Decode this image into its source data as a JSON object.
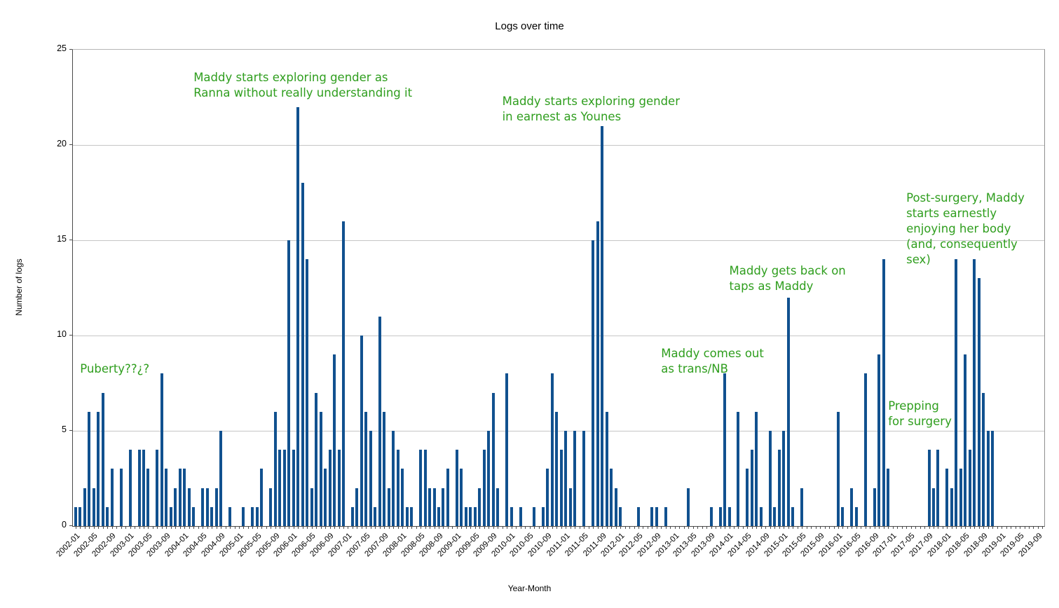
{
  "chart_data": {
    "type": "bar",
    "title": "Logs over time",
    "xlabel": "Year-Month",
    "ylabel": "Number of logs",
    "ylim": [
      0,
      25
    ],
    "yticks": [
      0,
      5,
      10,
      15,
      20,
      25
    ],
    "grid": "horizontal",
    "legend": "none",
    "x_start_month": "2002-01",
    "x_end_month": "2019-12",
    "x_tick_every_months": 1,
    "x_label_every_months": 4,
    "x_tick_labels": [
      "2002-01",
      "2002-05",
      "2002-09",
      "2003-01",
      "2003-05",
      "2003-09",
      "2004-01",
      "2004-05",
      "2004-09",
      "2005-01",
      "2005-05",
      "2005-09",
      "2006-01",
      "2006-05",
      "2006-09",
      "2007-01",
      "2007-05",
      "2007-09",
      "2008-01",
      "2008-05",
      "2008-09",
      "2009-01",
      "2009-05",
      "2009-09",
      "2010-01",
      "2010-05",
      "2010-09",
      "2011-01",
      "2011-05",
      "2011-09",
      "2012-01",
      "2012-05",
      "2012-09",
      "2013-01",
      "2013-05",
      "2013-09",
      "2014-01",
      "2014-05",
      "2014-09",
      "2015-01",
      "2015-05",
      "2015-09",
      "2016-01",
      "2016-05",
      "2016-09",
      "2017-01",
      "2017-05",
      "2017-09",
      "2018-01",
      "2018-05",
      "2018-09",
      "2019-01",
      "2019-05",
      "2019-09"
    ],
    "values_by_year": {
      "2002": [
        1,
        1,
        2,
        6,
        2,
        6,
        7,
        1,
        3,
        0,
        3,
        0
      ],
      "2003": [
        4,
        0,
        4,
        4,
        3,
        0,
        4,
        8,
        3,
        1,
        2,
        3
      ],
      "2004": [
        3,
        2,
        1,
        0,
        2,
        2,
        1,
        2,
        5,
        0,
        1,
        0
      ],
      "2005": [
        0,
        1,
        0,
        1,
        1,
        3,
        0,
        2,
        6,
        4,
        4,
        15
      ],
      "2006": [
        4,
        22,
        18,
        14,
        2,
        7,
        6,
        3,
        4,
        9,
        4,
        16
      ],
      "2007": [
        0,
        1,
        2,
        10,
        6,
        5,
        1,
        11,
        6,
        2,
        5,
        4
      ],
      "2008": [
        3,
        1,
        1,
        0,
        4,
        4,
        2,
        2,
        1,
        2,
        3,
        0
      ],
      "2009": [
        4,
        3,
        1,
        1,
        1,
        2,
        4,
        5,
        7,
        2,
        0,
        8
      ],
      "2010": [
        1,
        0,
        1,
        0,
        0,
        1,
        0,
        1,
        3,
        8,
        6,
        4
      ],
      "2011": [
        5,
        2,
        5,
        0,
        5,
        0,
        15,
        16,
        21,
        6,
        3,
        2
      ],
      "2012": [
        1,
        0,
        0,
        0,
        1,
        0,
        0,
        1,
        1,
        0,
        1,
        0
      ],
      "2013": [
        0,
        0,
        0,
        2,
        0,
        0,
        0,
        0,
        1,
        0,
        1,
        8
      ],
      "2014": [
        1,
        0,
        6,
        0,
        3,
        4,
        6,
        1,
        0,
        5,
        1,
        4
      ],
      "2015": [
        5,
        12,
        1,
        0,
        2,
        0,
        0,
        0,
        0,
        0,
        0,
        0
      ],
      "2016": [
        6,
        1,
        0,
        2,
        1,
        0,
        8,
        0,
        2,
        9,
        14,
        3
      ],
      "2017": [
        0,
        0,
        0,
        0,
        0,
        0,
        0,
        0,
        4,
        2,
        4,
        0
      ],
      "2018": [
        3,
        2,
        14,
        3,
        9,
        4,
        14,
        13,
        7,
        5,
        5,
        0
      ],
      "2019": [
        0,
        0,
        0,
        0,
        0,
        0,
        0,
        0,
        0,
        0,
        0,
        0
      ]
    },
    "annotations": [
      {
        "id": "puberty",
        "text": "Puberty??¿?",
        "x_month": "2002-02",
        "y_value": 8.65
      },
      {
        "id": "ranna",
        "text": "Maddy starts exploring gender as\nRanna without really understanding it",
        "x_month": "2004-03",
        "y_value": 23.95
      },
      {
        "id": "younes",
        "text": "Maddy starts exploring gender\nin earnest as Younes",
        "x_month": "2009-11",
        "y_value": 22.7
      },
      {
        "id": "comes-out",
        "text": "Maddy comes out\nas trans/NB",
        "x_month": "2012-10",
        "y_value": 9.45
      },
      {
        "id": "back-on-taps",
        "text": "Maddy gets back on\ntaps as Maddy",
        "x_month": "2014-01",
        "y_value": 13.8
      },
      {
        "id": "prepping",
        "text": "Prepping\nfor surgery",
        "x_month": "2016-12",
        "y_value": 6.7
      },
      {
        "id": "post-surgery",
        "text": "Post-surgery, Maddy\nstarts earnestly\nenjoying her body\n(and, consequently\nsex)",
        "x_month": "2017-04",
        "y_value": 17.6
      }
    ],
    "colors": {
      "bar": "#11518f",
      "annotation_text": "#2f9e1e",
      "gridline": "#c6c6c6",
      "axis": "#4a4a4a",
      "label_text": "#000000",
      "background": "#ffffff"
    }
  }
}
